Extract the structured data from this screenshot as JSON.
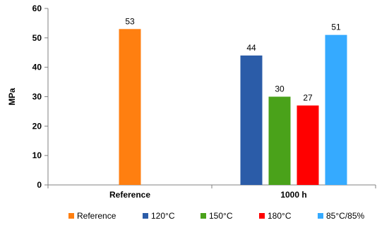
{
  "chart_data": {
    "type": "bar",
    "ylabel": "MPa",
    "xlabel": "",
    "ylim": [
      0,
      60
    ],
    "yticks": [
      0,
      10,
      20,
      30,
      40,
      50,
      60
    ],
    "grid": false,
    "legend_position": "bottom",
    "groups": [
      {
        "label": "Reference",
        "bars": [
          {
            "series": "Reference",
            "value": 53
          }
        ]
      },
      {
        "label": "1000 h",
        "bars": [
          {
            "series": "120°C",
            "value": 44
          },
          {
            "series": "150°C",
            "value": 30
          },
          {
            "series": "180°C",
            "value": 27
          },
          {
            "series": "85°C/85%",
            "value": 51
          }
        ]
      }
    ],
    "series": [
      {
        "name": "Reference",
        "color": "#ff7f10"
      },
      {
        "name": "120°C",
        "color": "#2b5ca8"
      },
      {
        "name": "150°C",
        "color": "#4aa21a"
      },
      {
        "name": "180°C",
        "color": "#ff0000"
      },
      {
        "name": "85°C/85%",
        "color": "#35aaff"
      }
    ]
  }
}
